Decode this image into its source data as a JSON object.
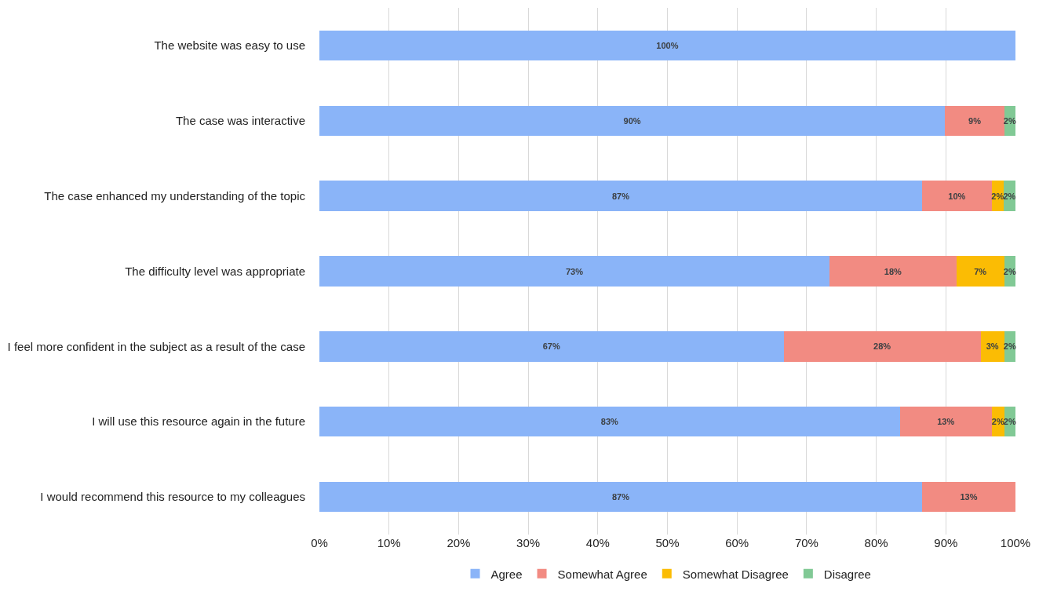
{
  "chart_data": {
    "type": "bar",
    "orientation": "horizontal",
    "stacked": true,
    "categories": [
      "The website was easy to use",
      "The case was interactive",
      "The case enhanced my understanding of the topic",
      "The difficulty level was appropriate",
      "I feel more confident in the subject as a result of the case",
      "I will use this resource again in the future",
      "I would recommend this resource to my colleagues"
    ],
    "series": [
      {
        "name": "Agree",
        "color": "#8ab4f8",
        "values": [
          100,
          89.9,
          86.6,
          73.3,
          66.7,
          83.4,
          86.6
        ],
        "value_labels": [
          "100%",
          "90%",
          "87%",
          "73%",
          "67%",
          "83%",
          "87%"
        ]
      },
      {
        "name": "Somewhat Agree",
        "color": "#f28b82",
        "values": [
          null,
          8.5,
          10.0,
          18.2,
          28.3,
          13.2,
          13.4
        ],
        "value_labels": [
          null,
          "9%",
          "10%",
          "18%",
          "28%",
          "13%",
          "13%"
        ]
      },
      {
        "name": "Somewhat Disagree",
        "color": "#fbbc04",
        "values": [
          null,
          null,
          1.7,
          6.9,
          3.4,
          1.8,
          null
        ],
        "value_labels": [
          null,
          null,
          "2%",
          "7%",
          "3%",
          "2%",
          null
        ]
      },
      {
        "name": "Disagree",
        "color": "#81c995",
        "values": [
          null,
          1.6,
          1.7,
          1.6,
          1.6,
          1.6,
          null
        ],
        "value_labels": [
          null,
          "2%",
          "2%",
          "2%",
          "2%",
          "2%",
          null
        ]
      }
    ],
    "xlim": [
      0,
      100
    ],
    "xticks": [
      {
        "value": 0,
        "label": "0%"
      },
      {
        "value": 10,
        "label": "10%"
      },
      {
        "value": 20,
        "label": "20%"
      },
      {
        "value": 30,
        "label": "30%"
      },
      {
        "value": 40,
        "label": "40%"
      },
      {
        "value": 50,
        "label": "50%"
      },
      {
        "value": 60,
        "label": "60%"
      },
      {
        "value": 70,
        "label": "70%"
      },
      {
        "value": 80,
        "label": "80%"
      },
      {
        "value": 90,
        "label": "90%"
      },
      {
        "value": 100,
        "label": "100%"
      }
    ],
    "grid": "x",
    "legend": "bottom"
  }
}
